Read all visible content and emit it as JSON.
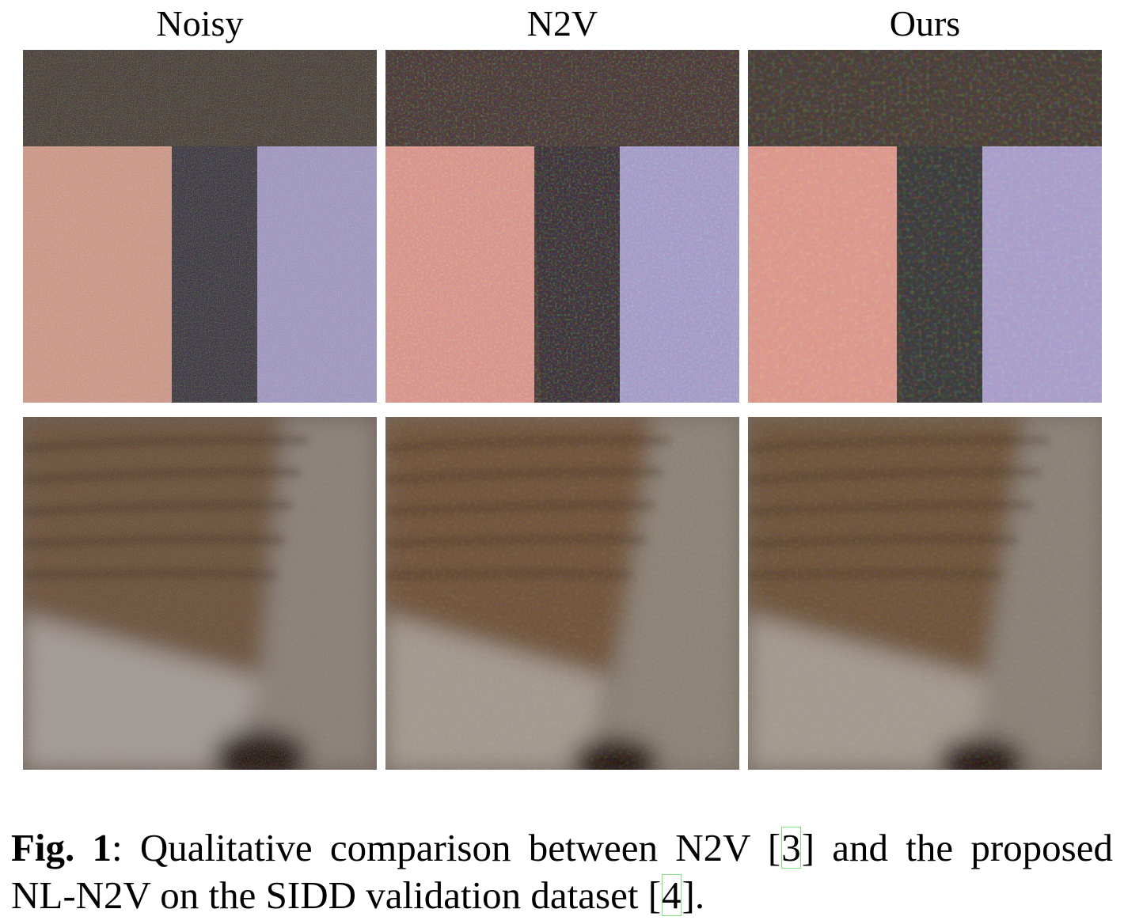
{
  "columns": [
    "Noisy",
    "N2V",
    "Ours"
  ],
  "caption": {
    "label": "Fig. 1",
    "line1_a": "Qualitative comparison between N2V [",
    "line1_cite": "3",
    "line1_b": "] and the proposed",
    "line2_a": "NL-N2V on the SIDD validation dataset [",
    "line2_cite": "4",
    "line2_b": "]."
  },
  "colors": {
    "cite_box": "#7fe27f",
    "top_dark": "#4a4038",
    "top_pink": "#d4968c",
    "top_lilac": "#a69cc4",
    "bottom_brown": "#7a6450",
    "bottom_grey": "#8a8078"
  }
}
